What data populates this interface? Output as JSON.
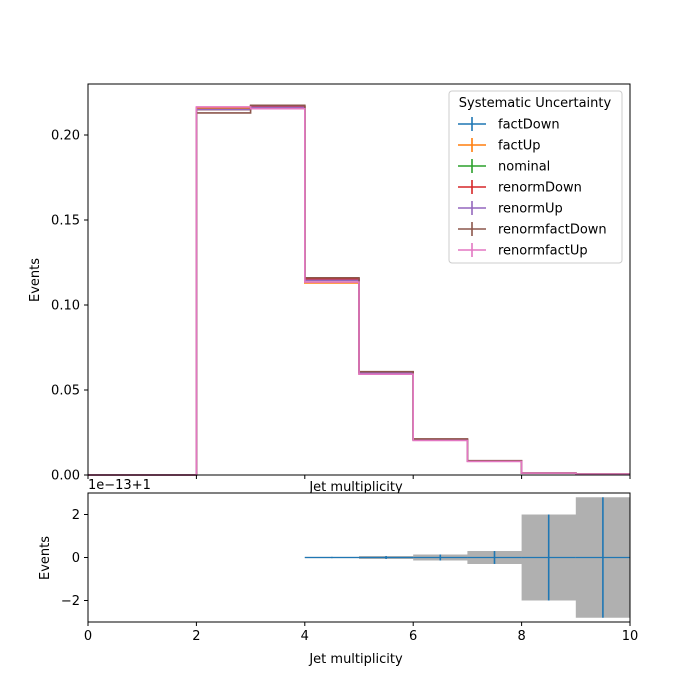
{
  "chart_data": [
    {
      "type": "line",
      "drawstyle": "steps",
      "title": "",
      "xlabel": "Jet multiplicity",
      "ylabel": "Events",
      "xlim": [
        0,
        10
      ],
      "ylim": [
        0,
        0.23
      ],
      "yticks": [
        0.0,
        0.05,
        0.1,
        0.15,
        0.2
      ],
      "ytick_labels": [
        "0.00",
        "0.05",
        "0.10",
        "0.15",
        "0.20"
      ],
      "bin_edges": [
        0,
        1,
        2,
        3,
        4,
        5,
        6,
        7,
        8,
        9,
        10
      ],
      "legend": {
        "title": "Systematic Uncertainty",
        "placement": "upper right"
      },
      "grid": false,
      "series": [
        {
          "name": "factDown",
          "color": "#1f77b4",
          "values": [
            0,
            0,
            0.215,
            0.2165,
            0.115,
            0.0605,
            0.021,
            0.0083,
            0.0011,
            0.0005
          ]
        },
        {
          "name": "factUp",
          "color": "#ff7f0e",
          "values": [
            0,
            0,
            0.216,
            0.217,
            0.113,
            0.0595,
            0.0205,
            0.0081,
            0.0011,
            0.0005
          ]
        },
        {
          "name": "nominal",
          "color": "#2ca02c",
          "values": [
            0,
            0,
            0.215,
            0.2168,
            0.1145,
            0.0603,
            0.0208,
            0.0082,
            0.0011,
            0.0005
          ]
        },
        {
          "name": "renormDown",
          "color": "#d62728",
          "values": [
            0,
            0,
            0.215,
            0.2168,
            0.1155,
            0.0605,
            0.0211,
            0.0083,
            0.0011,
            0.0005
          ]
        },
        {
          "name": "renormUp",
          "color": "#9467bd",
          "values": [
            0,
            0,
            0.215,
            0.2163,
            0.1145,
            0.06,
            0.0206,
            0.0082,
            0.0011,
            0.0005
          ]
        },
        {
          "name": "renormfactDown",
          "color": "#8c564b",
          "values": [
            0,
            0,
            0.213,
            0.2175,
            0.116,
            0.0608,
            0.0212,
            0.0084,
            0.0011,
            0.0005
          ]
        },
        {
          "name": "renormfactUp",
          "color": "#e377c2",
          "values": [
            0,
            0,
            0.2165,
            0.2155,
            0.1135,
            0.0593,
            0.0203,
            0.008,
            0.0011,
            0.0005
          ]
        }
      ]
    },
    {
      "type": "bar",
      "title": "",
      "xlabel": "Jet multiplicity",
      "ylabel": "Events",
      "offset_text": "1e−13+1",
      "xlim": [
        0,
        10
      ],
      "ylim": [
        -3,
        3
      ],
      "xticks": [
        0,
        2,
        4,
        6,
        8,
        10
      ],
      "xtick_labels": [
        "0",
        "2",
        "4",
        "6",
        "8",
        "10"
      ],
      "yticks": [
        -2,
        0,
        2
      ],
      "ytick_labels": [
        "−2",
        "0",
        "2"
      ],
      "bin_edges": [
        0,
        1,
        2,
        3,
        4,
        5,
        6,
        7,
        8,
        9,
        10
      ],
      "uncertainty_band": {
        "color": "#b0b0b0",
        "half_widths": [
          0,
          0,
          0,
          0,
          0.03,
          0.07,
          0.14,
          0.3,
          2.0,
          2.8
        ]
      },
      "ratio_points": {
        "color": "#1f77b4",
        "values": [
          null,
          null,
          null,
          null,
          0,
          0,
          0,
          0,
          0,
          0
        ],
        "errors": [
          0,
          0,
          0,
          0,
          0.03,
          0.07,
          0.14,
          0.3,
          2.0,
          2.8
        ]
      },
      "grid": false
    }
  ]
}
